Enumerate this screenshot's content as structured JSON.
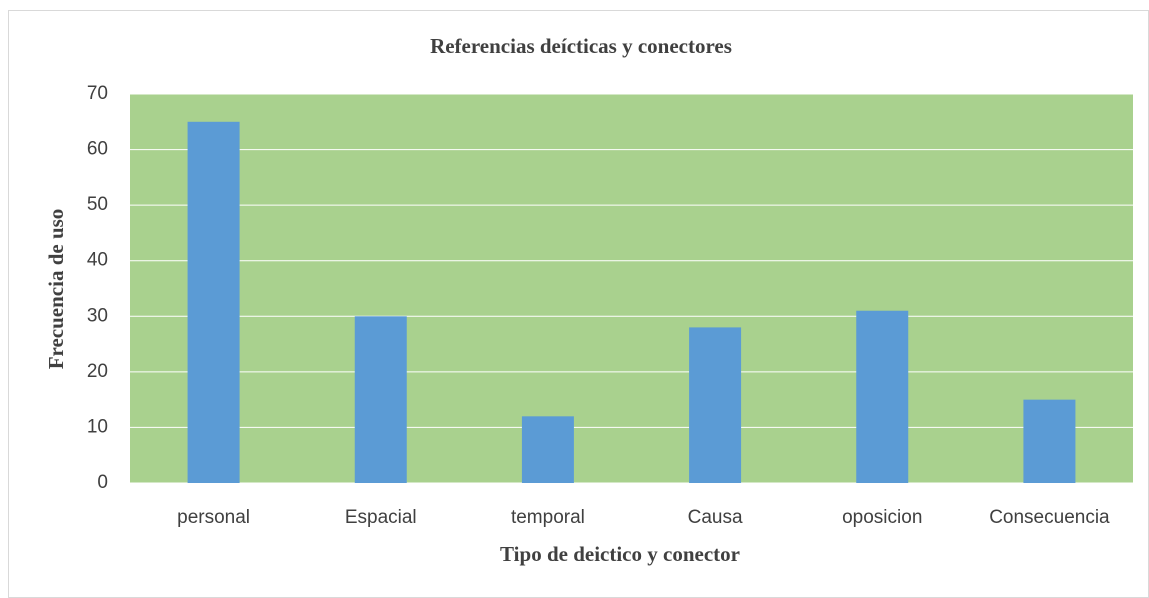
{
  "chart_data": {
    "type": "bar",
    "title": "Referencias deícticas y conectores",
    "x_label": "Tipo de deictico y conector",
    "y_label": "Frecuencia de uso",
    "categories": [
      "personal",
      "Espacial",
      "temporal",
      "Causa",
      "oposicion",
      "Consecuencia"
    ],
    "values": [
      65,
      30,
      12,
      28,
      31,
      15
    ],
    "color": "#5b9bd5",
    "plot_color": "#a9d18e",
    "ylim": [
      0,
      70
    ],
    "yticks": [
      0,
      10,
      20,
      30,
      40,
      50,
      60,
      70
    ],
    "grid": true
  }
}
